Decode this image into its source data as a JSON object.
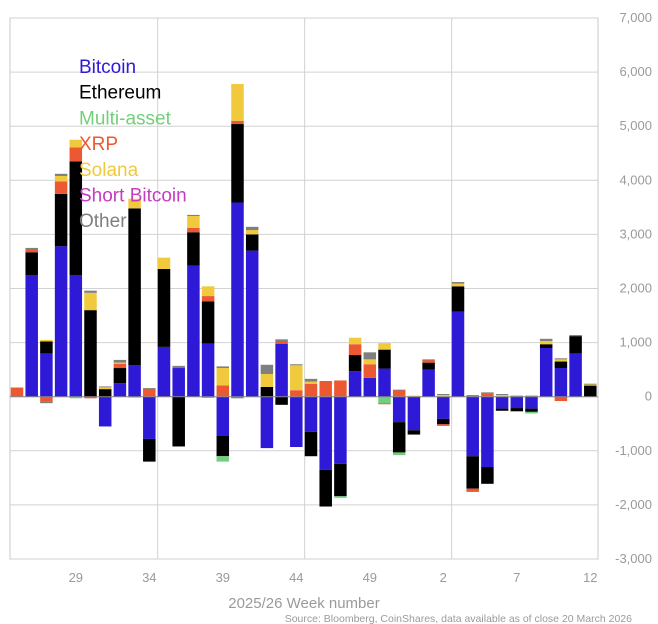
{
  "chart_data": {
    "type": "bar",
    "stacked": true,
    "xlabel": "2025/26 Week number",
    "source": "Source: Bloomberg, CoinShares, data available as of close 20 March 2026",
    "ylim": [
      -3000,
      7000
    ],
    "y_ticks": [
      7000,
      6000,
      5000,
      4000,
      3000,
      2000,
      1000,
      0,
      -1000,
      -2000,
      -3000
    ],
    "y_tick_labels": [
      "7,000",
      "6,000",
      "5,000",
      "4,000",
      "3,000",
      "2,000",
      "1,000",
      "0",
      "-1,000",
      "-2,000",
      "-3,000"
    ],
    "x_tick_labels": [
      {
        "week": 29,
        "label": "29"
      },
      {
        "week": 34,
        "label": "34"
      },
      {
        "week": 39,
        "label": "39"
      },
      {
        "week": 44,
        "label": "44"
      },
      {
        "week": 49,
        "label": "49"
      },
      {
        "week": 2,
        "label": "2"
      },
      {
        "week": 7,
        "label": "7"
      },
      {
        "week": 12,
        "label": "12"
      }
    ],
    "legend_placement": "top-left",
    "grid": true,
    "categories": [
      25,
      26,
      27,
      28,
      29,
      30,
      31,
      32,
      33,
      34,
      35,
      36,
      37,
      38,
      39,
      40,
      41,
      42,
      43,
      44,
      45,
      46,
      47,
      48,
      49,
      50,
      51,
      52,
      1,
      2,
      3,
      4,
      5,
      6,
      7,
      8,
      9,
      10,
      11,
      12
    ],
    "series": [
      {
        "name": "Bitcoin",
        "color": "#2d19d6",
        "values": [
          0,
          2250,
          800,
          2780,
          2250,
          0,
          -550,
          250,
          580,
          -780,
          920,
          530,
          2420,
          980,
          -720,
          3590,
          2700,
          -950,
          980,
          -930,
          -650,
          -1350,
          -1240,
          470,
          350,
          520,
          -470,
          -620,
          500,
          -410,
          1570,
          -1100,
          -1300,
          -220,
          -210,
          -220,
          900,
          530,
          800,
          0
        ]
      },
      {
        "name": "Ethereum",
        "color": "#000000",
        "values": [
          0,
          420,
          220,
          970,
          2100,
          1600,
          140,
          280,
          2900,
          -420,
          1440,
          -920,
          620,
          780,
          -380,
          1450,
          300,
          180,
          -150,
          0,
          -450,
          -680,
          -600,
          300,
          0,
          350,
          -560,
          -80,
          130,
          -100,
          470,
          -600,
          -310,
          -40,
          -60,
          -60,
          70,
          120,
          320,
          200
        ]
      },
      {
        "name": "Multi-asset",
        "color": "#72cf7b",
        "values": [
          0,
          0,
          0,
          0,
          -30,
          0,
          0,
          0,
          0,
          0,
          0,
          0,
          0,
          0,
          -100,
          0,
          0,
          0,
          0,
          0,
          0,
          0,
          -30,
          0,
          0,
          -120,
          -50,
          0,
          0,
          0,
          0,
          0,
          0,
          0,
          0,
          -30,
          0,
          0,
          0,
          0
        ]
      },
      {
        "name": "XRP",
        "color": "#ec5832",
        "values": [
          170,
          60,
          -90,
          230,
          260,
          -30,
          0,
          80,
          0,
          150,
          0,
          0,
          80,
          100,
          210,
          60,
          0,
          0,
          50,
          120,
          240,
          290,
          300,
          200,
          250,
          -20,
          120,
          0,
          50,
          -30,
          0,
          -60,
          60,
          0,
          0,
          0,
          0,
          -80,
          0,
          20
        ]
      },
      {
        "name": "Solana",
        "color": "#f0ca3c",
        "values": [
          0,
          0,
          30,
          100,
          140,
          320,
          40,
          20,
          180,
          0,
          210,
          0,
          220,
          180,
          320,
          680,
          80,
          240,
          0,
          460,
          40,
          0,
          0,
          120,
          90,
          120,
          0,
          20,
          0,
          30,
          50,
          0,
          0,
          30,
          0,
          0,
          60,
          40,
          0,
          10
        ]
      },
      {
        "name": "Short Bitcoin",
        "color": "#c43dc1",
        "values": [
          0,
          0,
          0,
          0,
          0,
          0,
          0,
          0,
          0,
          0,
          0,
          0,
          0,
          0,
          0,
          0,
          0,
          0,
          0,
          0,
          0,
          0,
          0,
          0,
          0,
          0,
          0,
          0,
          0,
          0,
          0,
          0,
          0,
          0,
          0,
          0,
          0,
          0,
          0,
          0
        ]
      },
      {
        "name": "Other",
        "color": "#7f7f7f",
        "values": [
          0,
          20,
          -30,
          40,
          0,
          40,
          10,
          50,
          -10,
          10,
          0,
          40,
          20,
          -20,
          30,
          -30,
          60,
          170,
          30,
          20,
          50,
          0,
          0,
          0,
          130,
          0,
          10,
          0,
          10,
          20,
          30,
          30,
          20,
          20,
          20,
          20,
          40,
          20,
          20,
          10
        ]
      }
    ]
  }
}
